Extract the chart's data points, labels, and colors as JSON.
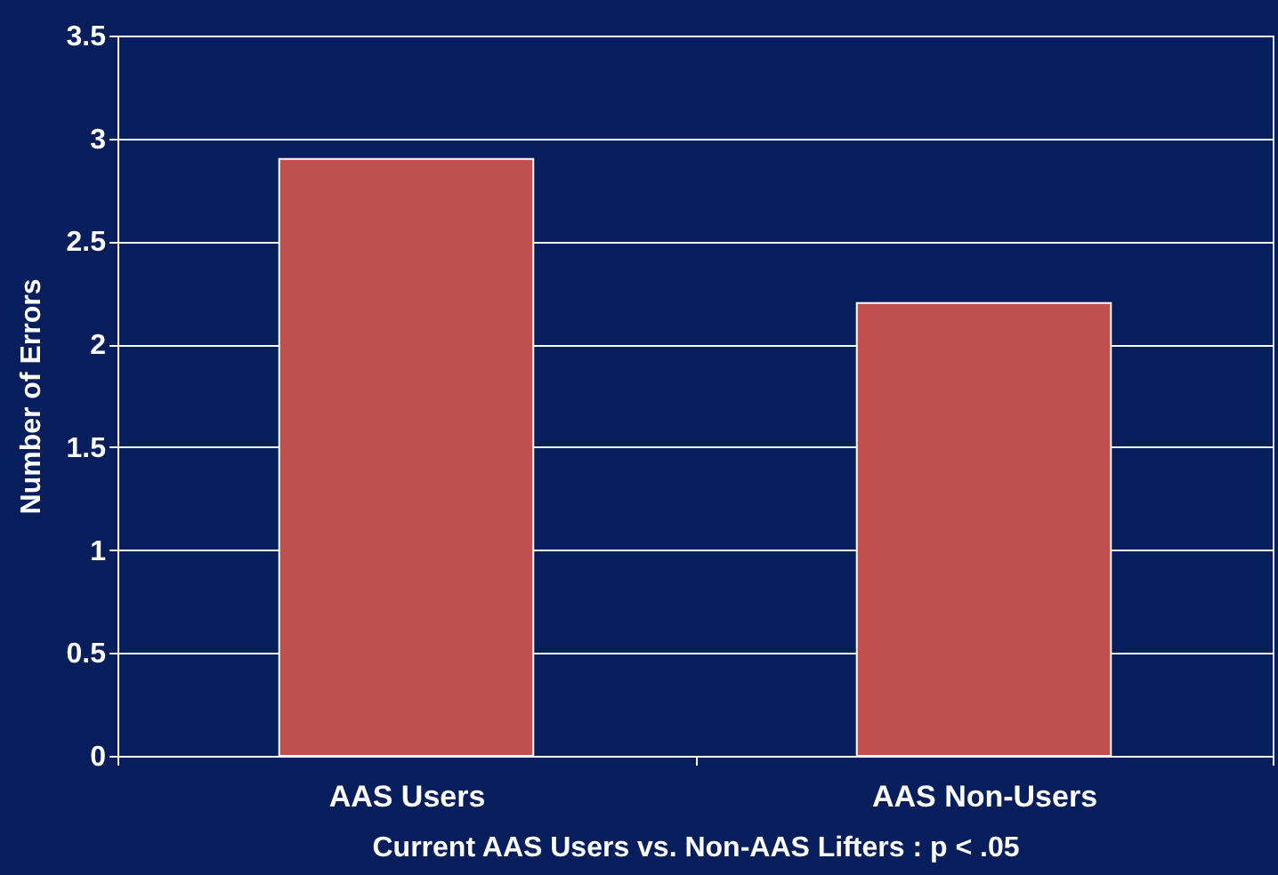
{
  "chart_data": {
    "type": "bar",
    "categories": [
      "AAS Users",
      "AAS Non-Users"
    ],
    "values": [
      2.9,
      2.2
    ],
    "color": "#c0504d",
    "ylabel": "Number of Errors",
    "xlabel": "Current AAS Users vs. Non-AAS Lifters : p < .05",
    "ylim": [
      0,
      3.5
    ],
    "yticks": [
      0,
      0.5,
      1,
      1.5,
      2,
      2.5,
      3,
      3.5
    ],
    "grid": "y"
  }
}
